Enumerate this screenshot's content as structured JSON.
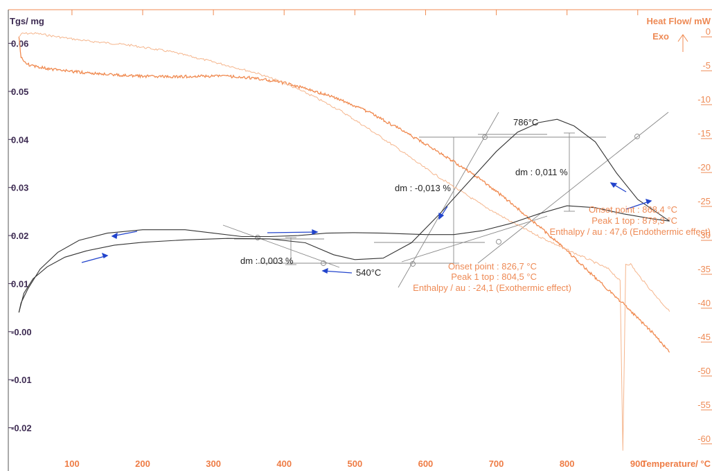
{
  "chart_data": {
    "type": "line",
    "left_axis_label": "Tgs/ mg",
    "right_axis_label": "Heat Flow/ mW",
    "exo_label": "Exo",
    "xlabel": "Temperature/ °C",
    "xlim": [
      10,
      1005
    ],
    "ylim_left": [
      -0.029,
      0.067
    ],
    "ylim_right": [
      -64,
      4
    ],
    "x_ticks": [
      "100",
      "200",
      "300",
      "400",
      "500",
      "600",
      "700",
      "800",
      "900"
    ],
    "left_ticks": [
      "0.06",
      "0.05",
      "0.04",
      "0.03",
      "0.02",
      "0.01",
      "-0.00",
      "-0.01",
      "-0.02"
    ],
    "right_ticks": [
      "0",
      "-5",
      "-10",
      "-15",
      "-20",
      "-25",
      "-30",
      "-35",
      "-40",
      "-45",
      "-50",
      "-55",
      "-60"
    ],
    "tg_heating": {
      "x": [
        25,
        32,
        45,
        65,
        90,
        120,
        160,
        200,
        260,
        320,
        380,
        430,
        470,
        500,
        540,
        580,
        620,
        660,
        700,
        730,
        760,
        786,
        810,
        840,
        870,
        900,
        930,
        945
      ],
      "y": [
        0.004,
        0.008,
        0.011,
        0.0135,
        0.0155,
        0.0168,
        0.018,
        0.0186,
        0.0191,
        0.0194,
        0.0193,
        0.0185,
        0.016,
        0.015,
        0.0153,
        0.0185,
        0.0245,
        0.031,
        0.0375,
        0.0415,
        0.0435,
        0.0442,
        0.0428,
        0.0395,
        0.033,
        0.0275,
        0.0245,
        0.023
      ]
    },
    "tg_cooling": {
      "x": [
        945,
        920,
        880,
        840,
        800,
        760,
        720,
        680,
        640,
        600,
        560,
        540,
        500,
        460,
        420,
        380,
        340,
        300,
        260,
        200,
        150,
        110,
        80,
        55,
        38,
        28,
        25
      ],
      "y": [
        0.023,
        0.0235,
        0.0245,
        0.0258,
        0.0262,
        0.0245,
        0.0225,
        0.021,
        0.0202,
        0.0202,
        0.0204,
        0.0205,
        0.0206,
        0.0205,
        0.02,
        0.0198,
        0.0198,
        0.0205,
        0.0212,
        0.0212,
        0.0205,
        0.019,
        0.0165,
        0.013,
        0.009,
        0.006,
        0.004
      ]
    },
    "heatflow_heating": {
      "x": [
        25,
        30,
        50,
        80,
        120,
        180,
        240,
        300,
        360,
        400,
        440,
        480,
        520,
        560,
        600,
        640,
        680,
        720,
        760,
        786,
        800,
        830,
        860,
        875,
        879,
        883,
        890,
        900,
        920,
        945
      ],
      "y": [
        0,
        0.5,
        0.5,
        0,
        -0.6,
        -1.2,
        -2.2,
        -3.7,
        -5.3,
        -6.8,
        -8.7,
        -10.9,
        -13.6,
        -16.4,
        -19.4,
        -22.1,
        -24.8,
        -27.2,
        -29.4,
        -30.7,
        -31.4,
        -32.8,
        -34.3,
        -36,
        -61,
        -33.5,
        -33.5,
        -35,
        -37.5,
        -40.5
      ]
    },
    "heatflow_cooling": {
      "x": [
        945,
        920,
        880,
        840,
        800,
        760,
        720,
        680,
        640,
        600,
        560,
        520,
        480,
        440,
        400,
        360,
        320,
        280,
        240,
        200,
        160,
        120,
        80,
        50,
        35,
        28,
        25
      ],
      "y": [
        -46.5,
        -43.5,
        -39.4,
        -35.5,
        -31.6,
        -27.9,
        -24.4,
        -21.2,
        -18.4,
        -15.8,
        -13.4,
        -11.1,
        -9.3,
        -7.9,
        -6.8,
        -6.1,
        -5.8,
        -5.8,
        -5.9,
        -5.8,
        -5.6,
        -5.3,
        -4.9,
        -4.4,
        -4,
        -3,
        0
      ]
    },
    "annotations": {
      "dm1": "dm : 0,003 %",
      "dm2": "dm : -0,013 %",
      "dm3": "dm : 0,011 %",
      "t540": "540°C",
      "t786": "786°C",
      "exo_onset": "Onset point : 826,7  °C",
      "exo_peak": "Peak 1 top : 804,5  °C",
      "exo_enthalpy": "Enthalpy / au : -24,1 (Exothermic effect)",
      "endo_onset": "Onset point : 868,4  °C",
      "endo_peak": "Peak 1 top : 879,3  °C",
      "endo_enthalpy": "Enthalpy / au : 47,6 (Endothermic effect)"
    },
    "colors": {
      "tg": "#333333",
      "heatflow": "#f08a50",
      "heatflow_light": "#f5b58c",
      "arrows": "#2244cc",
      "left_axis": "#3d2b52",
      "right_axis": "#ee8a55"
    },
    "grid": false
  }
}
